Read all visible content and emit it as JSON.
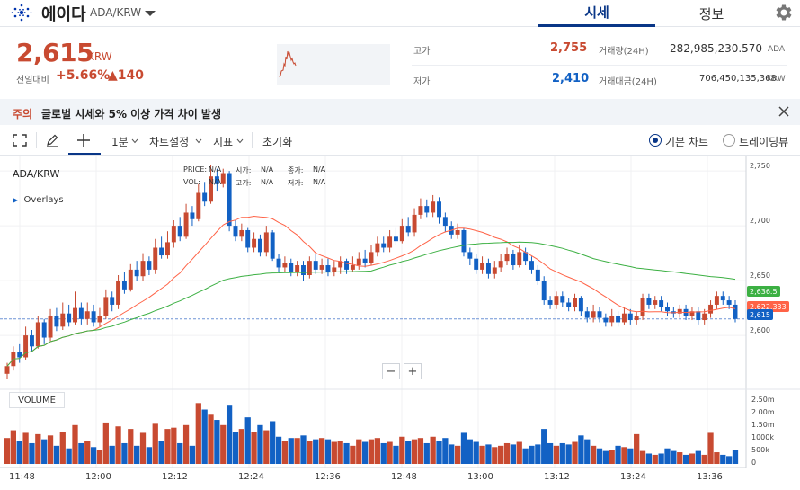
{
  "header": {
    "coin_name": "에이다",
    "coin_code": "ADA/KRW",
    "tabs": [
      {
        "label": "시세",
        "active": true
      },
      {
        "label": "정보",
        "active": false
      }
    ]
  },
  "price": {
    "current": "2,615",
    "unit": "KRW",
    "change_label": "전일대비",
    "change_rate": "+5.66%",
    "change_amount": "▲140"
  },
  "stats": {
    "high_label": "고가",
    "high_value": "2,755",
    "low_label": "저가",
    "low_value": "2,410",
    "volume_label": "거래량(24H)",
    "volume_value": "282,985,230.570",
    "volume_unit": "ADA",
    "value_label": "거래대금(24H)",
    "value_value": "706,450,135,368",
    "value_unit": "KRW"
  },
  "notice": {
    "tag": "주의",
    "text": "글로벌 시세와 5% 이상 가격 차이 발생"
  },
  "toolbar": {
    "interval": "1분",
    "chart_settings": "차트설정",
    "indicators": "지표",
    "reset": "초기화",
    "basic_chart": "기본 차트",
    "trading_view": "트레이딩뷰"
  },
  "chart": {
    "symbol": "ADA/KRW",
    "overlays": "Overlays",
    "ohlc": {
      "price_label": "PRICE:",
      "price": "N/A",
      "open_label": "시가:",
      "open": "N/A",
      "close_label": "종가:",
      "close": "N/A",
      "vol_label": "VOL:",
      "vol": "N/A",
      "high_label": "고가:",
      "high": "N/A",
      "low_label": "저가:",
      "low": "N/A"
    },
    "volume_label": "VOLUME",
    "zoom_out": "−",
    "zoom_in": "+",
    "badges": {
      "ma_long": "2,636.5",
      "ma_short": "2,622.333",
      "current": "2,615"
    },
    "colors": {
      "up": "#c84a31",
      "down": "#1261c4",
      "ma_short": "#ff6347",
      "ma_long": "#3cb043"
    }
  },
  "chart_data": {
    "type": "candlestick",
    "price_axis": {
      "ticks": [
        "2,750",
        "2,700",
        "2,650",
        "2,600"
      ],
      "range": [
        2560,
        2755
      ]
    },
    "volume_axis": {
      "ticks": [
        "2.50m",
        "2.00m",
        "1.50m",
        "1000k",
        "500k",
        "0"
      ],
      "range": [
        0,
        2500000
      ]
    },
    "time_ticks": [
      "11:48",
      "12:00",
      "12:12",
      "12:24",
      "12:36",
      "12:48",
      "13:00",
      "13:12",
      "13:24",
      "13:36"
    ],
    "candles": [
      [
        2565,
        2572,
        2575,
        2560,
        1000000
      ],
      [
        2572,
        2585,
        2590,
        2568,
        1300000
      ],
      [
        2585,
        2580,
        2592,
        2575,
        900000
      ],
      [
        2580,
        2600,
        2608,
        2578,
        1200000
      ],
      [
        2600,
        2590,
        2605,
        2585,
        800000
      ],
      [
        2590,
        2612,
        2618,
        2588,
        1150000
      ],
      [
        2612,
        2598,
        2615,
        2592,
        950000
      ],
      [
        2598,
        2618,
        2624,
        2595,
        1100000
      ],
      [
        2618,
        2608,
        2625,
        2604,
        700000
      ],
      [
        2608,
        2620,
        2630,
        2605,
        1250000
      ],
      [
        2620,
        2612,
        2628,
        2608,
        600000
      ],
      [
        2612,
        2625,
        2640,
        2610,
        1500000
      ],
      [
        2625,
        2615,
        2630,
        2610,
        800000
      ],
      [
        2615,
        2622,
        2630,
        2610,
        900000
      ],
      [
        2622,
        2612,
        2628,
        2608,
        650000
      ],
      [
        2612,
        2618,
        2625,
        2608,
        550000
      ],
      [
        2618,
        2635,
        2642,
        2615,
        1600000
      ],
      [
        2635,
        2628,
        2640,
        2622,
        700000
      ],
      [
        2628,
        2650,
        2655,
        2624,
        1450000
      ],
      [
        2650,
        2642,
        2658,
        2638,
        800000
      ],
      [
        2642,
        2660,
        2665,
        2640,
        1350000
      ],
      [
        2660,
        2654,
        2668,
        2650,
        700000
      ],
      [
        2654,
        2668,
        2675,
        2650,
        1200000
      ],
      [
        2668,
        2660,
        2672,
        2655,
        650000
      ],
      [
        2660,
        2680,
        2688,
        2656,
        1550000
      ],
      [
        2680,
        2673,
        2690,
        2670,
        900000
      ],
      [
        2673,
        2685,
        2695,
        2670,
        1350000
      ],
      [
        2685,
        2700,
        2705,
        2680,
        1400000
      ],
      [
        2700,
        2690,
        2708,
        2686,
        800000
      ],
      [
        2690,
        2712,
        2720,
        2688,
        1500000
      ],
      [
        2712,
        2706,
        2718,
        2700,
        700000
      ],
      [
        2706,
        2730,
        2738,
        2704,
        2350000
      ],
      [
        2730,
        2722,
        2740,
        2718,
        2100000
      ],
      [
        2722,
        2745,
        2755,
        2720,
        1900000
      ],
      [
        2745,
        2738,
        2752,
        2732,
        1700000
      ],
      [
        2738,
        2748,
        2752,
        2735,
        1500000
      ],
      [
        2748,
        2700,
        2750,
        2695,
        2250000
      ],
      [
        2700,
        2690,
        2705,
        2686,
        1250000
      ],
      [
        2690,
        2696,
        2702,
        2686,
        1350000
      ],
      [
        2696,
        2680,
        2698,
        2676,
        1800000
      ],
      [
        2680,
        2688,
        2694,
        2676,
        1250000
      ],
      [
        2688,
        2676,
        2692,
        2672,
        1500000
      ],
      [
        2676,
        2694,
        2700,
        2672,
        1300000
      ],
      [
        2694,
        2670,
        2696,
        2668,
        1650000
      ],
      [
        2670,
        2662,
        2674,
        2658,
        1050000
      ],
      [
        2662,
        2666,
        2672,
        2658,
        900000
      ],
      [
        2666,
        2658,
        2670,
        2654,
        1000000
      ],
      [
        2658,
        2664,
        2668,
        2654,
        1000000
      ],
      [
        2664,
        2655,
        2668,
        2650,
        1100000
      ],
      [
        2655,
        2668,
        2672,
        2652,
        900000
      ],
      [
        2668,
        2660,
        2674,
        2656,
        950000
      ],
      [
        2660,
        2664,
        2670,
        2656,
        1000000
      ],
      [
        2664,
        2658,
        2670,
        2654,
        950000
      ],
      [
        2658,
        2662,
        2668,
        2654,
        850000
      ],
      [
        2662,
        2668,
        2672,
        2656,
        900000
      ],
      [
        2668,
        2660,
        2670,
        2656,
        800000
      ],
      [
        2660,
        2664,
        2672,
        2658,
        700000
      ],
      [
        2664,
        2670,
        2676,
        2660,
        950000
      ],
      [
        2670,
        2666,
        2678,
        2662,
        850000
      ],
      [
        2666,
        2676,
        2682,
        2664,
        950000
      ],
      [
        2676,
        2684,
        2690,
        2672,
        1000000
      ],
      [
        2684,
        2680,
        2690,
        2676,
        800000
      ],
      [
        2680,
        2690,
        2696,
        2676,
        850000
      ],
      [
        2690,
        2686,
        2698,
        2682,
        700000
      ],
      [
        2686,
        2700,
        2706,
        2684,
        1050000
      ],
      [
        2700,
        2694,
        2708,
        2690,
        900000
      ],
      [
        2694,
        2710,
        2716,
        2690,
        950000
      ],
      [
        2710,
        2718,
        2725,
        2706,
        1000000
      ],
      [
        2718,
        2712,
        2724,
        2708,
        800000
      ],
      [
        2712,
        2722,
        2728,
        2708,
        1050000
      ],
      [
        2722,
        2708,
        2726,
        2702,
        900000
      ],
      [
        2708,
        2700,
        2712,
        2694,
        1000000
      ],
      [
        2700,
        2692,
        2704,
        2688,
        750000
      ],
      [
        2692,
        2696,
        2702,
        2688,
        700000
      ],
      [
        2696,
        2676,
        2698,
        2672,
        1200000
      ],
      [
        2676,
        2670,
        2680,
        2664,
        950000
      ],
      [
        2670,
        2660,
        2674,
        2656,
        850000
      ],
      [
        2660,
        2666,
        2672,
        2656,
        700000
      ],
      [
        2666,
        2656,
        2670,
        2652,
        750000
      ],
      [
        2656,
        2662,
        2668,
        2652,
        650000
      ],
      [
        2662,
        2668,
        2674,
        2658,
        700000
      ],
      [
        2668,
        2674,
        2680,
        2664,
        800000
      ],
      [
        2674,
        2664,
        2678,
        2660,
        750000
      ],
      [
        2664,
        2676,
        2682,
        2662,
        850000
      ],
      [
        2676,
        2668,
        2680,
        2664,
        600000
      ],
      [
        2668,
        2660,
        2672,
        2656,
        700000
      ],
      [
        2660,
        2650,
        2664,
        2646,
        750000
      ],
      [
        2650,
        2632,
        2654,
        2628,
        1350000
      ],
      [
        2632,
        2628,
        2636,
        2624,
        800000
      ],
      [
        2628,
        2636,
        2640,
        2624,
        700000
      ],
      [
        2636,
        2630,
        2640,
        2626,
        800000
      ],
      [
        2630,
        2626,
        2634,
        2622,
        750000
      ],
      [
        2626,
        2634,
        2638,
        2622,
        850000
      ],
      [
        2634,
        2622,
        2636,
        2618,
        1100000
      ],
      [
        2622,
        2616,
        2626,
        2612,
        950000
      ],
      [
        2616,
        2622,
        2628,
        2612,
        700000
      ],
      [
        2622,
        2616,
        2626,
        2612,
        600000
      ],
      [
        2616,
        2612,
        2620,
        2608,
        500000
      ],
      [
        2612,
        2618,
        2624,
        2608,
        550000
      ],
      [
        2618,
        2612,
        2622,
        2608,
        700000
      ],
      [
        2612,
        2620,
        2626,
        2610,
        650000
      ],
      [
        2620,
        2614,
        2624,
        2610,
        600000
      ],
      [
        2614,
        2618,
        2622,
        2610,
        1150000
      ],
      [
        2618,
        2634,
        2638,
        2614,
        500000
      ],
      [
        2634,
        2628,
        2638,
        2624,
        400000
      ],
      [
        2628,
        2632,
        2636,
        2624,
        350000
      ],
      [
        2632,
        2626,
        2636,
        2622,
        400000
      ],
      [
        2626,
        2622,
        2630,
        2618,
        600000
      ],
      [
        2622,
        2620,
        2626,
        2616,
        500000
      ],
      [
        2620,
        2624,
        2628,
        2616,
        450000
      ],
      [
        2624,
        2618,
        2628,
        2614,
        350000
      ],
      [
        2618,
        2622,
        2626,
        2614,
        400000
      ],
      [
        2622,
        2614,
        2626,
        2610,
        500000
      ],
      [
        2614,
        2620,
        2624,
        2610,
        350000
      ],
      [
        2620,
        2628,
        2632,
        2616,
        1200000
      ],
      [
        2628,
        2636,
        2640,
        2624,
        450000
      ],
      [
        2636,
        2632,
        2640,
        2628,
        350000
      ],
      [
        2632,
        2628,
        2636,
        2624,
        300000
      ],
      [
        2628,
        2615,
        2632,
        2612,
        550000
      ]
    ]
  }
}
